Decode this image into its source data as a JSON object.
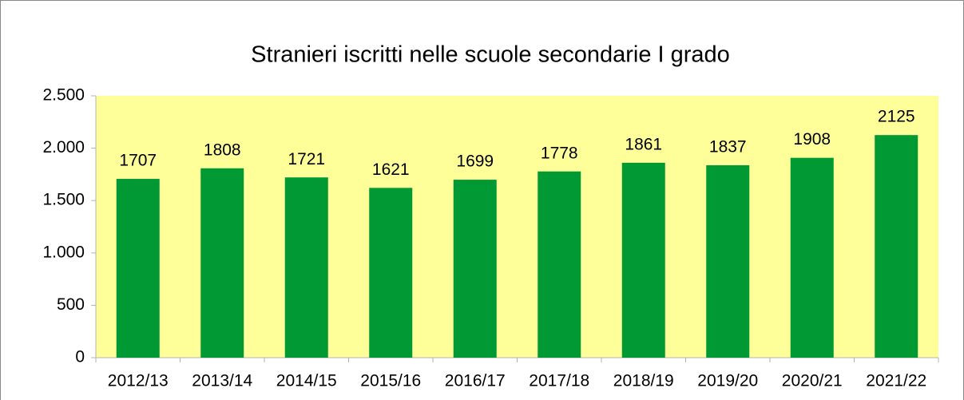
{
  "chart_data": {
    "type": "bar",
    "title": "Stranieri iscritti nelle scuole secondarie I grado",
    "categories": [
      "2012/13",
      "2013/14",
      "2014/15",
      "2015/16",
      "2016/17",
      "2017/18",
      "2018/19",
      "2019/20",
      "2020/21",
      "2021/22"
    ],
    "values": [
      1707,
      1808,
      1721,
      1621,
      1699,
      1778,
      1861,
      1837,
      1908,
      2125
    ],
    "color": "#009933",
    "ylim": [
      0,
      2500
    ],
    "yticks": [
      0,
      500,
      {
        "value": 1000,
        "label": "1.000"
      },
      {
        "value": 1500,
        "label": "1.500"
      },
      {
        "value": 2000,
        "label": "2.000"
      },
      {
        "value": 2500,
        "label": "2.500"
      }
    ],
    "grid": false
  }
}
